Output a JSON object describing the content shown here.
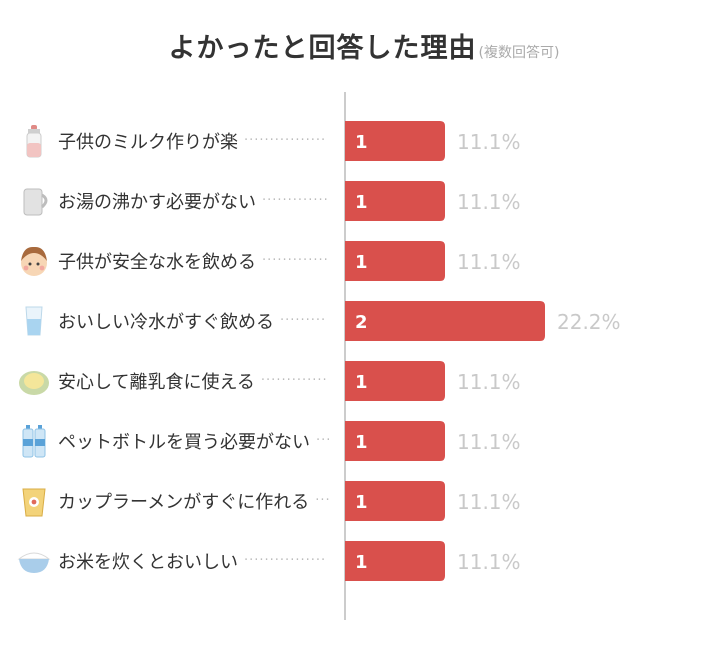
{
  "title": "よかったと回答した理由",
  "subtitle": "(複数回答可)",
  "colors": {
    "bar": "#d9504c",
    "axis": "#aaaaaa",
    "label": "#333333",
    "percent": "#c9c9c9"
  },
  "chart_data": {
    "type": "bar",
    "orientation": "horizontal",
    "title": "よかったと回答した理由",
    "subtitle": "(複数回答可)",
    "categories": [
      "子供のミルク作りが楽",
      "お湯の沸かす必要がない",
      "子供が安全な水を飲める",
      "おいしい冷水がすぐ飲める",
      "安心して離乳食に使える",
      "ペットボトルを買う必要がない",
      "カップラーメンがすぐに作れる",
      "お米を炊くとおいしい"
    ],
    "icons": [
      "baby-bottle-icon",
      "kettle-icon",
      "baby-face-icon",
      "water-glass-icon",
      "baby-food-bowl-icon",
      "water-bottles-icon",
      "cup-noodle-icon",
      "rice-bowl-icon"
    ],
    "values": [
      1,
      1,
      1,
      2,
      1,
      1,
      1,
      1
    ],
    "percent_labels": [
      "11.1%",
      "11.1%",
      "11.1%",
      "22.2%",
      "11.1%",
      "11.1%",
      "11.1%",
      "11.1%"
    ],
    "xlim": [
      0,
      2
    ],
    "xlabel": "",
    "ylabel": "",
    "grid": false,
    "legend": "none"
  }
}
